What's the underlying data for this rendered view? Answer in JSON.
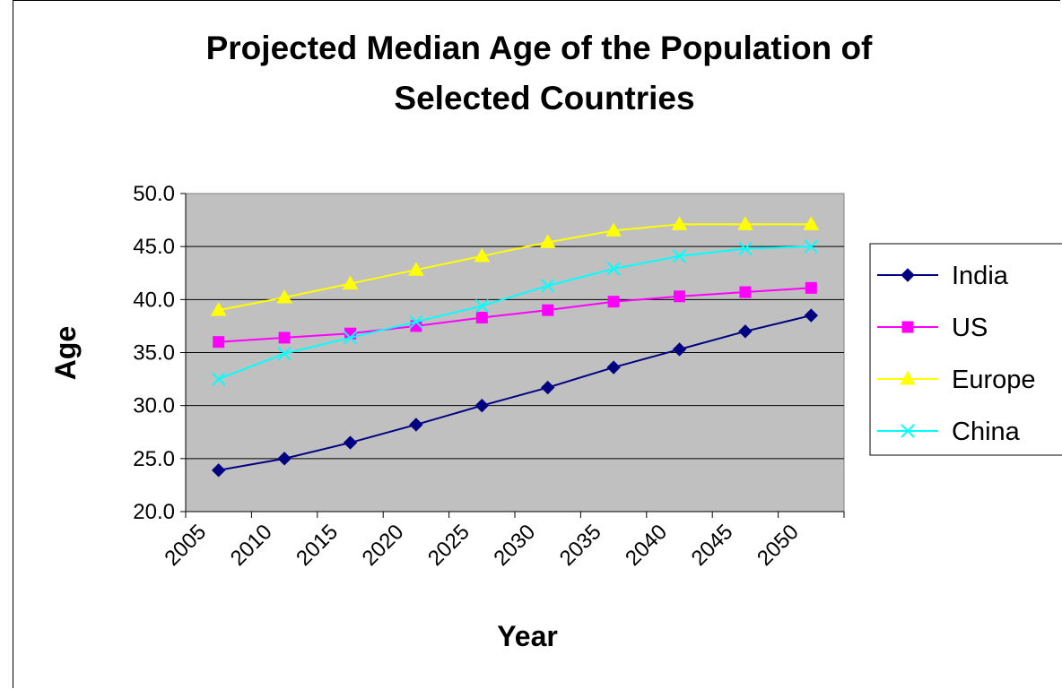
{
  "chart_data": {
    "type": "line",
    "title": "Projected Median Age of the Population of Selected Countries",
    "title_lines": [
      "Projected Median Age of the Population of",
      "Selected Countries"
    ],
    "xlabel": "Year",
    "ylabel": "Age",
    "categories": [
      "2005",
      "2010",
      "2015",
      "2020",
      "2025",
      "2030",
      "2035",
      "2040",
      "2045",
      "2050"
    ],
    "y_tick_labels": [
      "20.0",
      "25.0",
      "30.0",
      "35.0",
      "40.0",
      "45.0",
      "50.0"
    ],
    "ylim": [
      20,
      50
    ],
    "grid": true,
    "plot_background": "#c0c0c0",
    "legend_position": "right",
    "series": [
      {
        "name": "India",
        "color": "#000080",
        "marker": "diamond",
        "values": [
          23.9,
          25.0,
          26.5,
          28.2,
          30.0,
          31.7,
          33.6,
          35.3,
          37.0,
          38.5
        ]
      },
      {
        "name": "US",
        "color": "#ff00ff",
        "marker": "square",
        "values": [
          36.0,
          36.4,
          36.8,
          37.5,
          38.3,
          39.0,
          39.8,
          40.3,
          40.7,
          41.1
        ]
      },
      {
        "name": "Europe",
        "color": "#ffff00",
        "marker": "triangle",
        "values": [
          39.0,
          40.2,
          41.5,
          42.8,
          44.1,
          45.4,
          46.5,
          47.1,
          47.1,
          47.1
        ]
      },
      {
        "name": "China",
        "color": "#00ffff",
        "marker": "x",
        "values": [
          32.5,
          34.9,
          36.4,
          37.9,
          39.4,
          41.3,
          42.9,
          44.1,
          44.8,
          45.0
        ]
      }
    ]
  }
}
